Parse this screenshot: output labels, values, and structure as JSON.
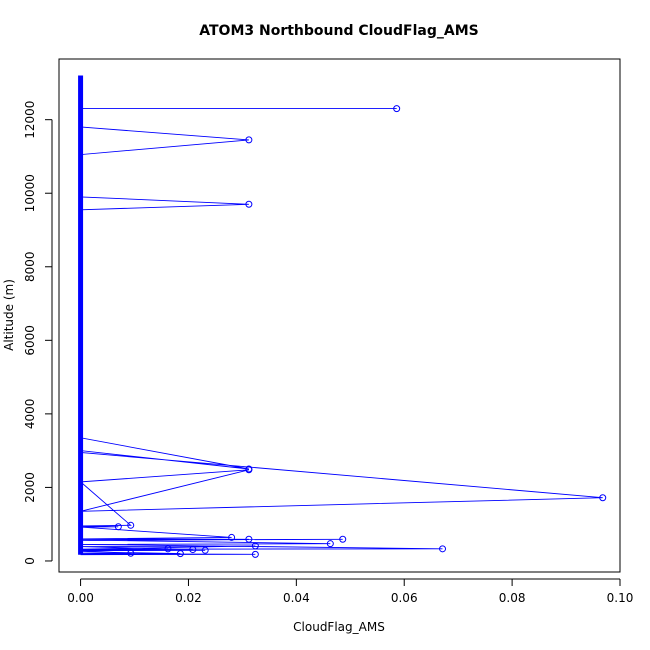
{
  "chart_data": {
    "type": "line",
    "title": "ATOM3 Northbound CloudFlag_AMS",
    "xlabel": "CloudFlag_AMS",
    "ylabel": "Altitude (m)",
    "xlim": [
      -0.004,
      0.1
    ],
    "ylim": [
      -300,
      13650
    ],
    "xticks": [
      0,
      0.02,
      0.04,
      0.06,
      0.08,
      0.1
    ],
    "xtick_labels": [
      "0.00",
      "0.02",
      "0.04",
      "0.06",
      "0.08",
      "0.10"
    ],
    "yticks": [
      0,
      2000,
      4000,
      6000,
      8000,
      10000,
      12000
    ],
    "ytick_labels": [
      "0",
      "2000",
      "4000",
      "6000",
      "8000",
      "10000",
      "12000"
    ],
    "grid": false,
    "legend": "none",
    "line_color": "#0000ff",
    "marker": "open-circle",
    "series": [
      {
        "x": [
          0,
          0,
          0.0586,
          0,
          0,
          0.0312,
          0,
          0,
          0.0312,
          0,
          0,
          0.0312,
          0,
          0,
          0.0968,
          0,
          0.0312,
          0,
          0.0093,
          0,
          0.007,
          0,
          0.028,
          0,
          0.0312,
          0,
          0.0486,
          0,
          0.0463,
          0,
          0.0671,
          0,
          0.0324,
          0,
          0.0208,
          0,
          0.0231,
          0,
          0.0162,
          0,
          0.0185,
          0,
          0.0093,
          0,
          0.0324,
          0
        ],
        "y": [
          13200,
          12300,
          12300,
          12300,
          11800,
          11450,
          11050,
          9900,
          9700,
          9550,
          3350,
          2500,
          3000,
          2950,
          1720,
          1350,
          2480,
          2150,
          970,
          950,
          930,
          920,
          640,
          600,
          590,
          560,
          590,
          570,
          470,
          450,
          330,
          320,
          410,
          390,
          310,
          300,
          290,
          280,
          330,
          250,
          200,
          190,
          210,
          200,
          180,
          170
        ]
      }
    ]
  }
}
